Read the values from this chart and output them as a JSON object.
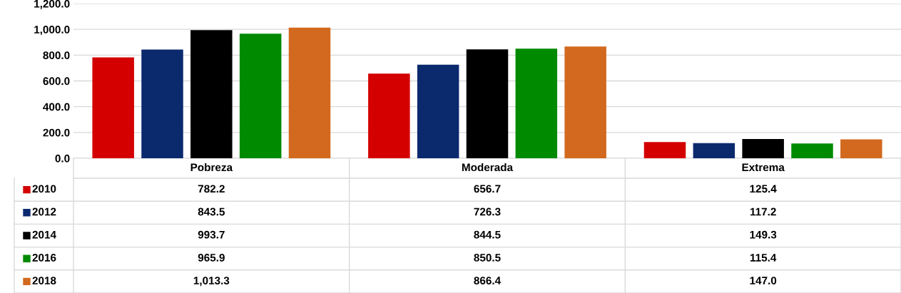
{
  "chart_data": {
    "type": "bar",
    "categories": [
      "Pobreza",
      "Moderada",
      "Extrema"
    ],
    "series": [
      {
        "name": "2010",
        "color": "#d40000",
        "values": [
          782.2,
          656.7,
          125.4
        ],
        "value_labels": [
          "782.2",
          "656.7",
          "125.4"
        ]
      },
      {
        "name": "2012",
        "color": "#0b2a6e",
        "values": [
          843.5,
          726.3,
          117.2
        ],
        "value_labels": [
          "843.5",
          "726.3",
          "117.2"
        ]
      },
      {
        "name": "2014",
        "color": "#000000",
        "values": [
          993.7,
          844.5,
          149.3
        ],
        "value_labels": [
          "993.7",
          "844.5",
          "149.3"
        ]
      },
      {
        "name": "2016",
        "color": "#008a00",
        "values": [
          965.9,
          850.5,
          115.4
        ],
        "value_labels": [
          "965.9",
          "850.5",
          "115.4"
        ]
      },
      {
        "name": "2018",
        "color": "#d2691e",
        "values": [
          1013.3,
          866.4,
          147.0
        ],
        "value_labels": [
          "1,013.3",
          "866.4",
          "147.0"
        ]
      }
    ],
    "ylim": [
      0,
      1200
    ],
    "yticks": [
      {
        "value": 0,
        "label": "0.0"
      },
      {
        "value": 200,
        "label": "200.0"
      },
      {
        "value": 400,
        "label": "400.0"
      },
      {
        "value": 600,
        "label": "600.0"
      },
      {
        "value": 800,
        "label": "800.0"
      },
      {
        "value": 1000,
        "label": "1,000.0"
      },
      {
        "value": 1200,
        "label": "1,200.0"
      }
    ],
    "grid": "y",
    "legend": "bottom left"
  }
}
